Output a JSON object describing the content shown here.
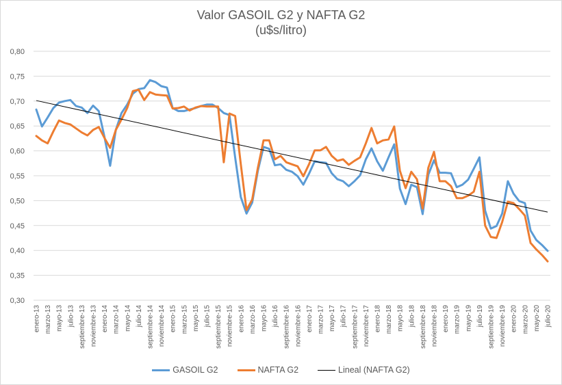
{
  "chart_data": {
    "type": "line",
    "title": "Valor GASOIL G2 y NAFTA G2",
    "subtitle": "(u$s/litro)",
    "xlabel": "",
    "ylabel": "",
    "ylim": [
      0.3,
      0.8
    ],
    "y_ticks": [
      "0,30",
      "0,35",
      "0,40",
      "0,45",
      "0,50",
      "0,55",
      "0,60",
      "0,65",
      "0,70",
      "0,75",
      "0,80"
    ],
    "y_tick_values": [
      0.3,
      0.35,
      0.4,
      0.45,
      0.5,
      0.55,
      0.6,
      0.65,
      0.7,
      0.75,
      0.8
    ],
    "grid": true,
    "legend_position": "bottom",
    "x_tick_labels": [
      "enero-13",
      "marzo-13",
      "mayo-13",
      "julio-13",
      "septiembre-13",
      "noviembre-13",
      "enero-14",
      "marzo-14",
      "mayo-14",
      "julio-14",
      "septiembre-14",
      "noviembre-14",
      "enero-15",
      "marzo-15",
      "mayo-15",
      "julio-15",
      "septiembre-15",
      "noviembre-15",
      "enero-16",
      "marzo-16",
      "mayo-16",
      "julio-16",
      "septiembre-16",
      "noviembre-16",
      "enero-17",
      "marzo-17",
      "mayo-17",
      "julio-17",
      "septiembre-17",
      "noviembre-17",
      "enero-18",
      "marzo-18",
      "mayo-18",
      "julio-18",
      "septiembre-18",
      "noviembre-18",
      "enero-19",
      "marzo-19",
      "mayo-19",
      "julio-19",
      "septiembre-19",
      "noviembre-19",
      "enero-20",
      "marzo-20",
      "mayo-20",
      "julio-20"
    ],
    "x_start": "enero-13",
    "x_end": "julio-20",
    "n_months": 91,
    "series": [
      {
        "name": "GASOIL G2",
        "color": "#5b9bd5",
        "values": [
          0.683,
          0.649,
          0.667,
          0.686,
          0.697,
          0.7,
          0.702,
          0.69,
          0.687,
          0.676,
          0.691,
          0.68,
          0.628,
          0.57,
          0.642,
          0.676,
          0.693,
          0.715,
          0.724,
          0.726,
          0.742,
          0.738,
          0.73,
          0.727,
          0.686,
          0.68,
          0.68,
          0.683,
          0.686,
          0.69,
          0.693,
          0.693,
          0.686,
          0.676,
          0.672,
          0.587,
          0.507,
          0.474,
          0.496,
          0.56,
          0.608,
          0.604,
          0.571,
          0.573,
          0.562,
          0.558,
          0.549,
          0.532,
          0.554,
          0.579,
          0.577,
          0.576,
          0.555,
          0.543,
          0.539,
          0.529,
          0.539,
          0.551,
          0.583,
          0.605,
          0.579,
          0.56,
          0.587,
          0.613,
          0.524,
          0.493,
          0.532,
          0.527,
          0.473,
          0.552,
          0.581,
          0.556,
          0.556,
          0.555,
          0.527,
          0.532,
          0.542,
          0.564,
          0.587,
          0.48,
          0.444,
          0.449,
          0.474,
          0.539,
          0.514,
          0.499,
          0.495,
          0.44,
          0.421,
          0.411,
          0.399
        ]
      },
      {
        "name": "NAFTA G2",
        "color": "#ed7d31",
        "values": [
          0.63,
          0.621,
          0.615,
          0.639,
          0.661,
          0.656,
          0.653,
          0.645,
          0.637,
          0.631,
          0.642,
          0.648,
          0.626,
          0.606,
          0.642,
          0.663,
          0.686,
          0.72,
          0.723,
          0.702,
          0.718,
          0.713,
          0.712,
          0.711,
          0.685,
          0.686,
          0.689,
          0.681,
          0.687,
          0.69,
          0.689,
          0.689,
          0.689,
          0.577,
          0.675,
          0.67,
          0.573,
          0.481,
          0.502,
          0.566,
          0.621,
          0.621,
          0.583,
          0.59,
          0.577,
          0.573,
          0.569,
          0.549,
          0.573,
          0.601,
          0.601,
          0.608,
          0.59,
          0.58,
          0.583,
          0.572,
          0.58,
          0.587,
          0.615,
          0.646,
          0.615,
          0.621,
          0.623,
          0.649,
          0.56,
          0.525,
          0.558,
          0.543,
          0.484,
          0.566,
          0.598,
          0.539,
          0.539,
          0.529,
          0.505,
          0.505,
          0.51,
          0.518,
          0.558,
          0.45,
          0.427,
          0.425,
          0.457,
          0.498,
          0.495,
          0.483,
          0.47,
          0.415,
          0.402,
          0.391,
          0.378
        ]
      },
      {
        "name": "Lineal (NAFTA G2)",
        "color": "#000000",
        "trend": {
          "start": 0.701,
          "end": 0.477
        }
      }
    ]
  },
  "legend": {
    "items": [
      "GASOIL G2",
      "NAFTA G2",
      "Lineal (NAFTA G2)"
    ]
  }
}
